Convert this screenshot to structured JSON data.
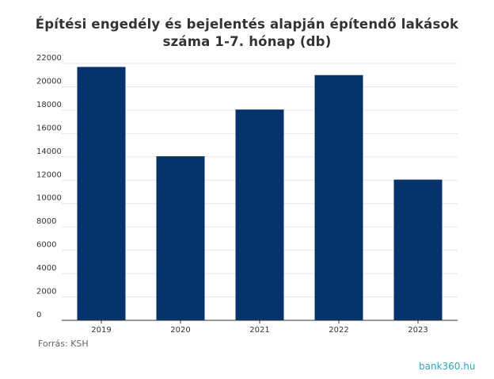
{
  "chart_data": {
    "type": "bar",
    "title": "Építési engedély és bejelentés alapján építendő lakások száma 1-7. hónap (db)",
    "title_lines": [
      "Építési engedély és bejelentés alapján építendő lakások",
      "száma 1-7. hónap (db)"
    ],
    "categories": [
      "2019",
      "2020",
      "2021",
      "2022",
      "2023"
    ],
    "values": [
      21700,
      14050,
      18050,
      21000,
      12050
    ],
    "ylim": [
      0,
      22000
    ],
    "yticks": [
      0,
      2000,
      4000,
      6000,
      8000,
      10000,
      12000,
      14000,
      16000,
      18000,
      20000,
      22000
    ],
    "xlabel": "",
    "ylabel": "",
    "bar_color": "#06326c",
    "grid": true
  },
  "source": "Forrás: KSH",
  "logo": {
    "text": "bank360.hu",
    "color": "#2fa6c9"
  }
}
